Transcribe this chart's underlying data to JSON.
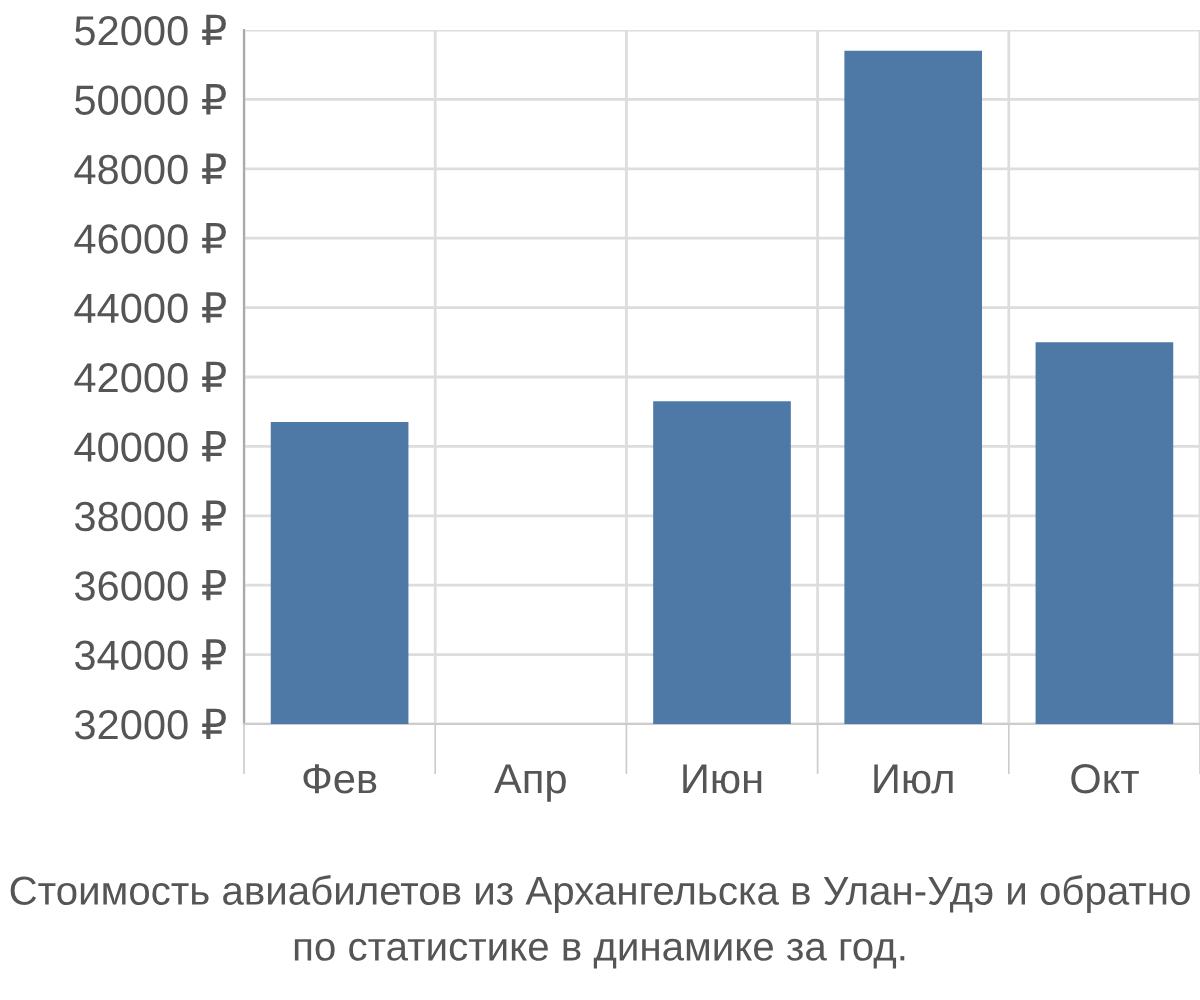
{
  "chart_data": {
    "type": "bar",
    "categories": [
      "Фев",
      "Апр",
      "Июн",
      "Июл",
      "Окт"
    ],
    "values": [
      40700,
      null,
      41300,
      51400,
      43000
    ],
    "color": "#4e79a7",
    "ylim": [
      32000,
      52000
    ],
    "yticks": [
      {
        "value": 32000,
        "label": "32000 ₽"
      },
      {
        "value": 34000,
        "label": "34000 ₽"
      },
      {
        "value": 36000,
        "label": "36000 ₽"
      },
      {
        "value": 38000,
        "label": "38000 ₽"
      },
      {
        "value": 40000,
        "label": "40000 ₽"
      },
      {
        "value": 42000,
        "label": "42000 ₽"
      },
      {
        "value": 44000,
        "label": "44000 ₽"
      },
      {
        "value": 46000,
        "label": "46000 ₽"
      },
      {
        "value": 48000,
        "label": "48000 ₽"
      },
      {
        "value": 50000,
        "label": "50000 ₽"
      },
      {
        "value": 52000,
        "label": "52000 ₽"
      }
    ],
    "grid": true,
    "annotations": [
      "Стоимость авиабилетов из Архангельска в Улан-Удэ и обратно",
      "по статистике в динамике за год."
    ]
  }
}
